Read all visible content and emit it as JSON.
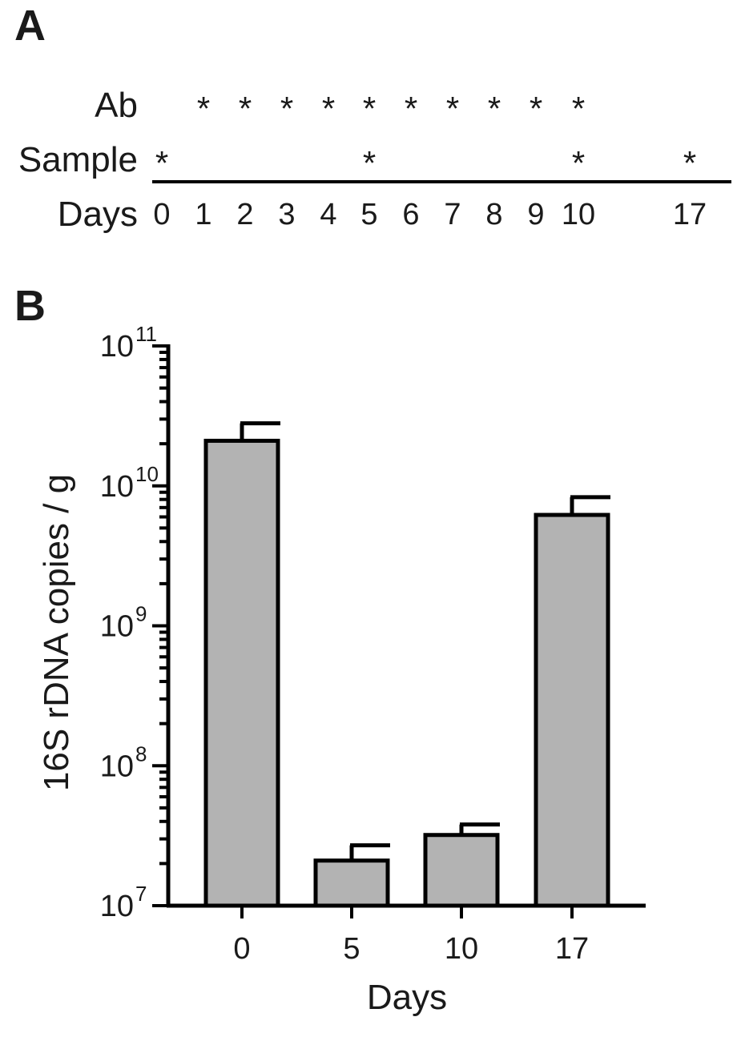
{
  "panel_a": {
    "letter": "A",
    "rows": {
      "ab_label": "Ab",
      "sample_label": "Sample",
      "days_label": "Days"
    },
    "marker": "*",
    "days": [
      "0",
      "1",
      "2",
      "3",
      "4",
      "5",
      "6",
      "7",
      "8",
      "9",
      "10",
      "17"
    ],
    "ab_days": [
      "1",
      "2",
      "3",
      "4",
      "5",
      "6",
      "7",
      "8",
      "9",
      "10"
    ],
    "sample_days": [
      "0",
      "5",
      "10",
      "17"
    ]
  },
  "panel_b": {
    "letter": "B"
  },
  "chart_data": {
    "type": "bar",
    "categories": [
      "0",
      "5",
      "10",
      "17"
    ],
    "values": [
      21000000000.0,
      21000000.0,
      32000000.0,
      6200000000.0
    ],
    "error_upper": [
      28000000000.0,
      27000000.0,
      38000000.0,
      8300000000.0
    ],
    "xlabel": "Days",
    "ylabel": "16S rDNA copies / g",
    "yscale": "log",
    "ylim": [
      10000000.0,
      100000000000.0
    ],
    "yticks": [
      {
        "value": 10000000.0,
        "base": "10",
        "exp": "7"
      },
      {
        "value": 100000000.0,
        "base": "10",
        "exp": "8"
      },
      {
        "value": 1000000000.0,
        "base": "10",
        "exp": "9"
      },
      {
        "value": 10000000000.0,
        "base": "10",
        "exp": "10"
      },
      {
        "value": 100000000000.0,
        "base": "10",
        "exp": "11"
      }
    ],
    "bar_color": "#b3b3b3",
    "line_color": "#000000",
    "grid": false
  }
}
